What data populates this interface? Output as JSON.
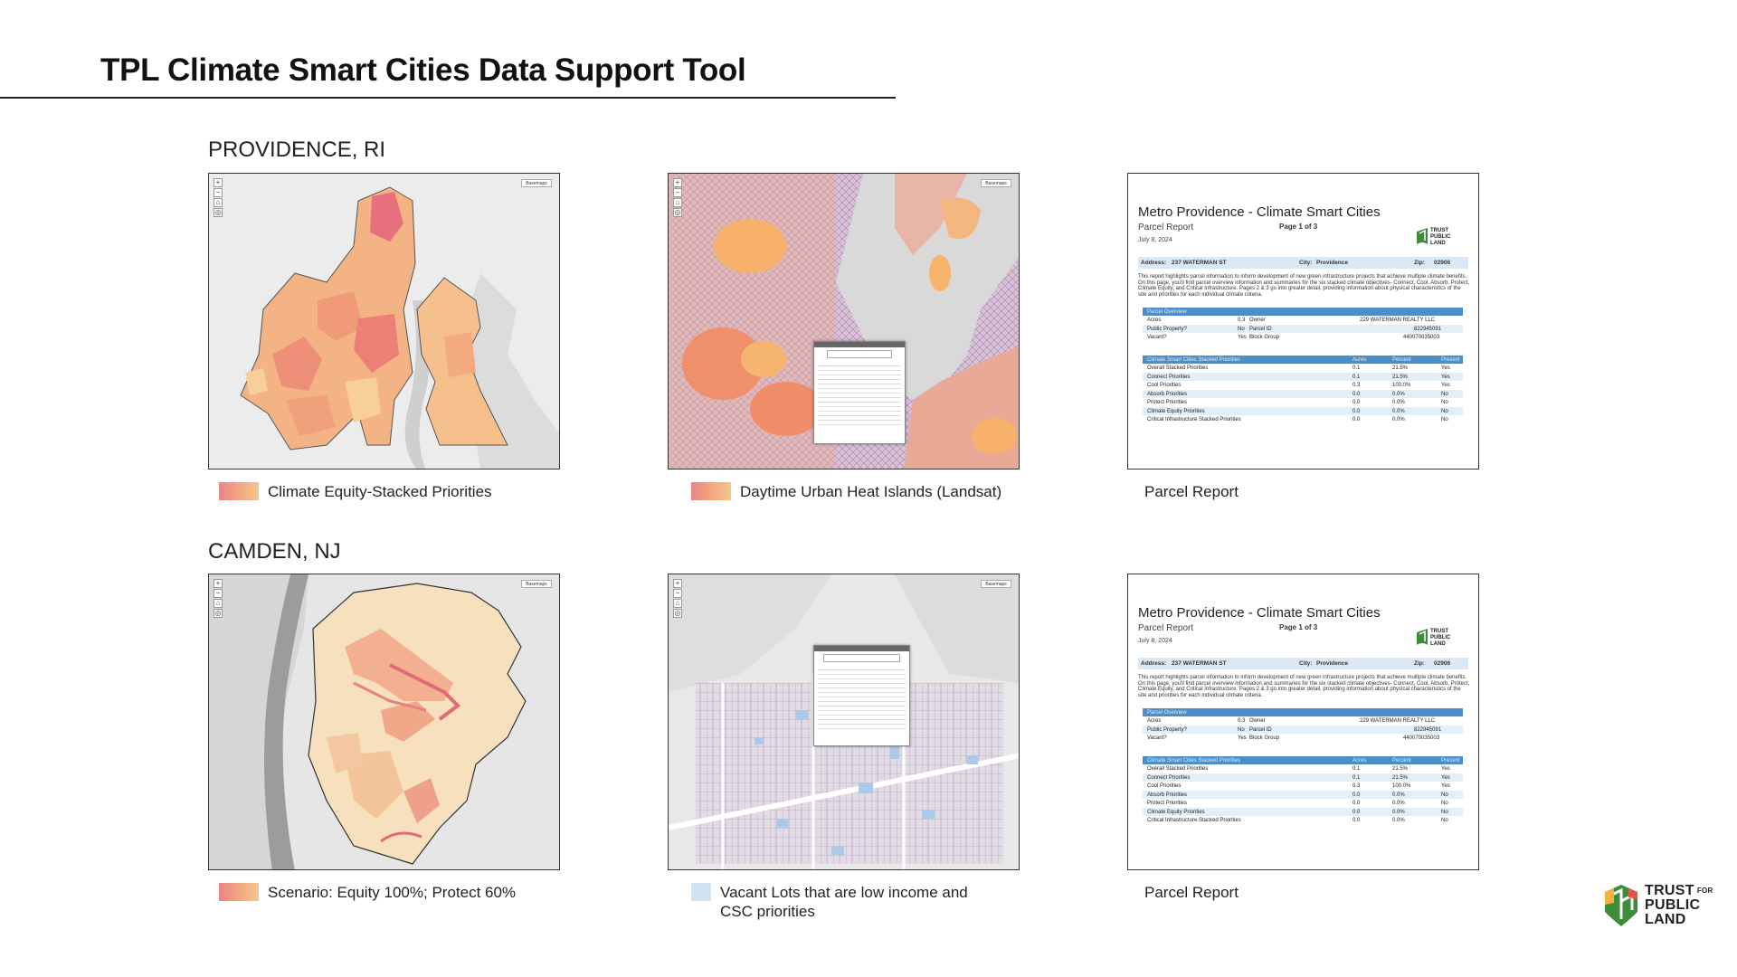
{
  "title": "TPL Climate Smart Cities Data Support Tool",
  "sections": [
    {
      "city": "PROVIDENCE, RI",
      "panels": [
        {
          "caption": "Climate Equity-Stacked Priorities",
          "legend": "warm"
        },
        {
          "caption": "Daytime Urban Heat Islands (Landsat)",
          "legend": "warm"
        },
        {
          "caption": "Parcel Report",
          "legend": "none"
        }
      ]
    },
    {
      "city": "CAMDEN, NJ",
      "panels": [
        {
          "caption": "Scenario: Equity 100%; Protect 60%",
          "legend": "warm"
        },
        {
          "caption": "Vacant Lots that are low income and CSC priorities",
          "legend": "blue"
        },
        {
          "caption": "Parcel Report",
          "legend": "none"
        }
      ]
    }
  ],
  "map_ui": {
    "basemaps_label": "Basemaps",
    "zoom_in": "+",
    "zoom_out": "−"
  },
  "report": {
    "title": "Metro Providence - Climate Smart Cities",
    "subtitle": "Parcel Report",
    "page": "Page 1 of 3",
    "date": "July 8, 2024",
    "address_label": "Address:",
    "address": "237 WATERMAN ST",
    "city_label": "City:",
    "city": "Providence",
    "zip_label": "Zip:",
    "zip": "02906",
    "intro": "This report highlights parcel information to inform development of new green infrastructure projects that achieve multiple climate benefits. On this page, you'll find parcel overview information and summaries for the six stacked climate objectives- Connect, Cool, Absorb, Protect, Climate Equity, and Critical Infrastructure. Pages 2 & 3 go into greater detail, providing information about physical characteristics of the site and priorities for each individual climate criteria.",
    "overview_header": "Parcel Overview",
    "overview": [
      {
        "k1": "Acres",
        "v1": "0.3",
        "k2": "Owner",
        "v2": "229 WATERMAN REALTY LLC"
      },
      {
        "k1": "Public Property?",
        "v1": "No",
        "k2": "Parcel ID",
        "v2": "822945091"
      },
      {
        "k1": "Vacant?",
        "v1": "Yes",
        "k2": "Block Group",
        "v2": "440070035003"
      }
    ],
    "priorities_header": [
      "Climate Smart Cities Stacked Priorities",
      "Acres",
      "Percent",
      "Present"
    ],
    "priorities": [
      [
        "Overall Stacked Priorities",
        "0.1",
        "21.5%",
        "Yes"
      ],
      [
        "Connect Priorities",
        "0.1",
        "21.5%",
        "Yes"
      ],
      [
        "Cool Priorities",
        "0.3",
        "100.0%",
        "Yes"
      ],
      [
        "Absorb Priorities",
        "0.0",
        "0.0%",
        "No"
      ],
      [
        "Protect Priorities",
        "0.0",
        "0.0%",
        "No"
      ],
      [
        "Climate Equity Priorities",
        "0.0",
        "0.0%",
        "No"
      ],
      [
        "Critical Infrastructure Stacked Priorities",
        "0.0",
        "0.0%",
        "No"
      ]
    ],
    "logo": [
      "TRUST",
      "FOR",
      "PUBLIC",
      "LAND"
    ]
  },
  "logo": [
    "TRUST",
    "FOR",
    "PUBLIC",
    "LAND"
  ],
  "colors": {
    "priority_high": "#e06a78",
    "priority_mid": "#f0a070",
    "priority_low": "#f7cf9a",
    "vacant_lot": "#cfe3f3",
    "report_header": "#4a8fc8",
    "logo_green": "#3d8c3a"
  }
}
